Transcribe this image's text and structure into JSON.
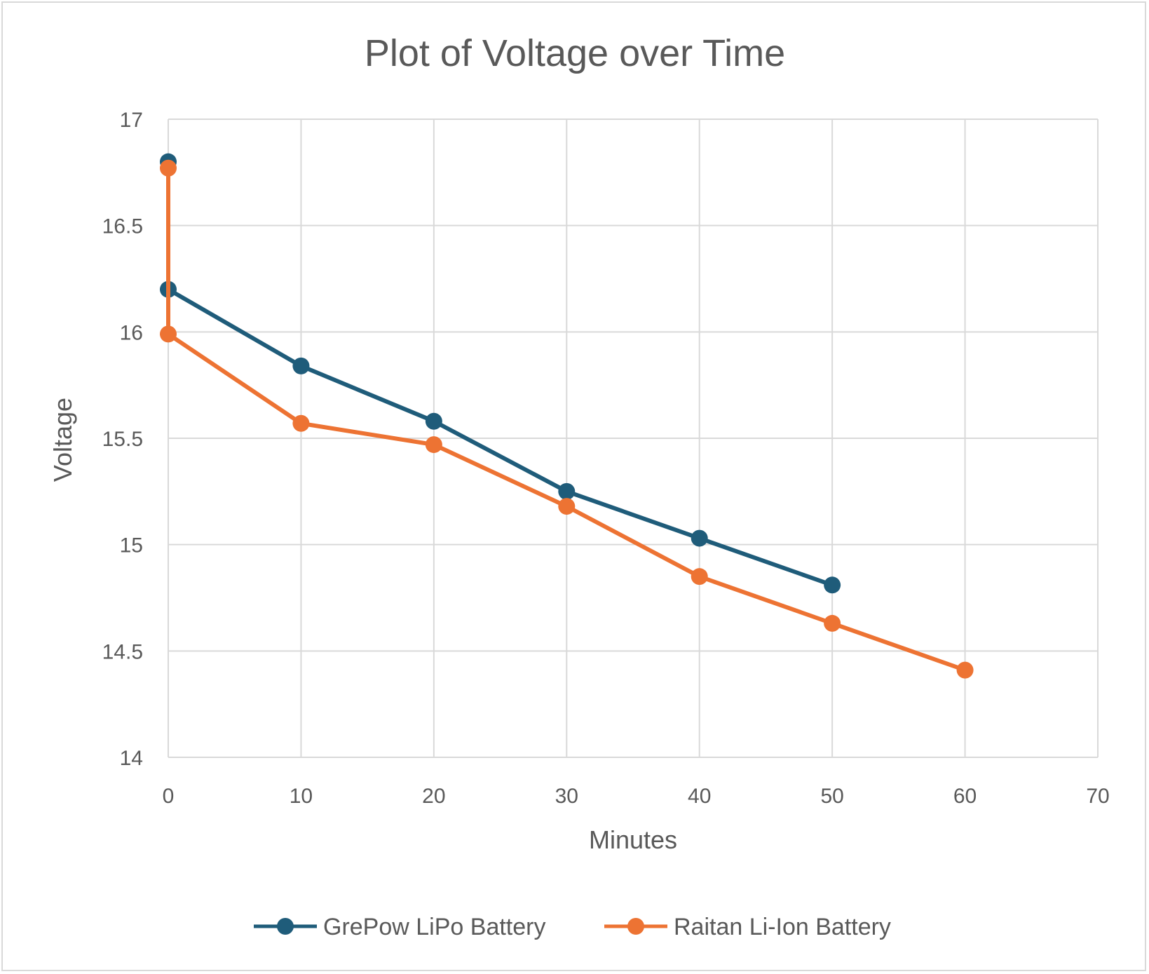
{
  "chart_data": {
    "type": "scatter",
    "title": "Plot of Voltage over Time",
    "xlabel": "Minutes",
    "ylabel": "Voltage",
    "xlim": [
      0,
      70
    ],
    "ylim": [
      14,
      17
    ],
    "x_ticks": [
      0,
      10,
      20,
      30,
      40,
      50,
      60,
      70
    ],
    "y_ticks": [
      14,
      14.5,
      15,
      15.5,
      16,
      16.5,
      17
    ],
    "x_tick_labels": [
      "0",
      "10",
      "20",
      "30",
      "40",
      "50",
      "60",
      "70"
    ],
    "y_tick_labels": [
      "14",
      "14.5",
      "15",
      "15.5",
      "16",
      "16.5",
      "17"
    ],
    "grid": true,
    "legend_position": "bottom",
    "series": [
      {
        "name": "GrePow LiPo Battery",
        "color": "#1f5c7a",
        "points": [
          [
            0,
            16.8
          ],
          [
            0,
            16.2
          ],
          [
            10,
            15.84
          ],
          [
            20,
            15.58
          ],
          [
            30,
            15.25
          ],
          [
            40,
            15.03
          ],
          [
            50,
            14.81
          ]
        ]
      },
      {
        "name": "Raitan Li-Ion Battery",
        "color": "#ed7333",
        "points": [
          [
            0,
            16.77
          ],
          [
            0,
            15.99
          ],
          [
            10,
            15.57
          ],
          [
            20,
            15.47
          ],
          [
            30,
            15.18
          ],
          [
            40,
            14.85
          ],
          [
            50,
            14.63
          ],
          [
            60,
            14.41
          ]
        ]
      }
    ]
  }
}
